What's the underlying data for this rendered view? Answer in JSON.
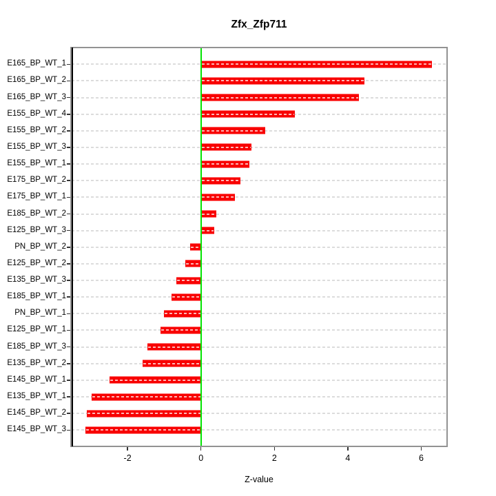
{
  "chart_data": {
    "type": "bar",
    "orientation": "horizontal",
    "title": "Zfx_Zfp711",
    "xlabel": "Z-value",
    "ylabel": "",
    "categories": [
      "E165_BP_WT_1",
      "E165_BP_WT_2",
      "E165_BP_WT_3",
      "E155_BP_WT_4",
      "E155_BP_WT_2",
      "E155_BP_WT_3",
      "E155_BP_WT_1",
      "E175_BP_WT_2",
      "E175_BP_WT_1",
      "E185_BP_WT_2",
      "E125_BP_WT_3",
      "PN_BP_WT_2",
      "E125_BP_WT_2",
      "E135_BP_WT_3",
      "E185_BP_WT_1",
      "PN_BP_WT_1",
      "E125_BP_WT_1",
      "E185_BP_WT_3",
      "E135_BP_WT_2",
      "E145_BP_WT_1",
      "E135_BP_WT_1",
      "E145_BP_WT_2",
      "E145_BP_WT_3"
    ],
    "values": [
      6.3,
      4.45,
      4.3,
      2.56,
      1.76,
      1.38,
      1.31,
      1.07,
      0.92,
      0.41,
      0.36,
      -0.29,
      -0.42,
      -0.67,
      -0.8,
      -1.0,
      -1.1,
      -1.46,
      -1.59,
      -2.49,
      -2.98,
      -3.11,
      -3.15
    ],
    "x_ticks": [
      -2,
      0,
      2,
      4,
      6
    ],
    "xlim": [
      -3.52,
      6.68
    ],
    "grid": "horizontal-dashed",
    "legend": null,
    "colors": {
      "bar": "#ff0000",
      "zero_line": "#00e400",
      "box_border": "#929292",
      "gridline": "#dcdcdc",
      "text": "#000000"
    }
  }
}
